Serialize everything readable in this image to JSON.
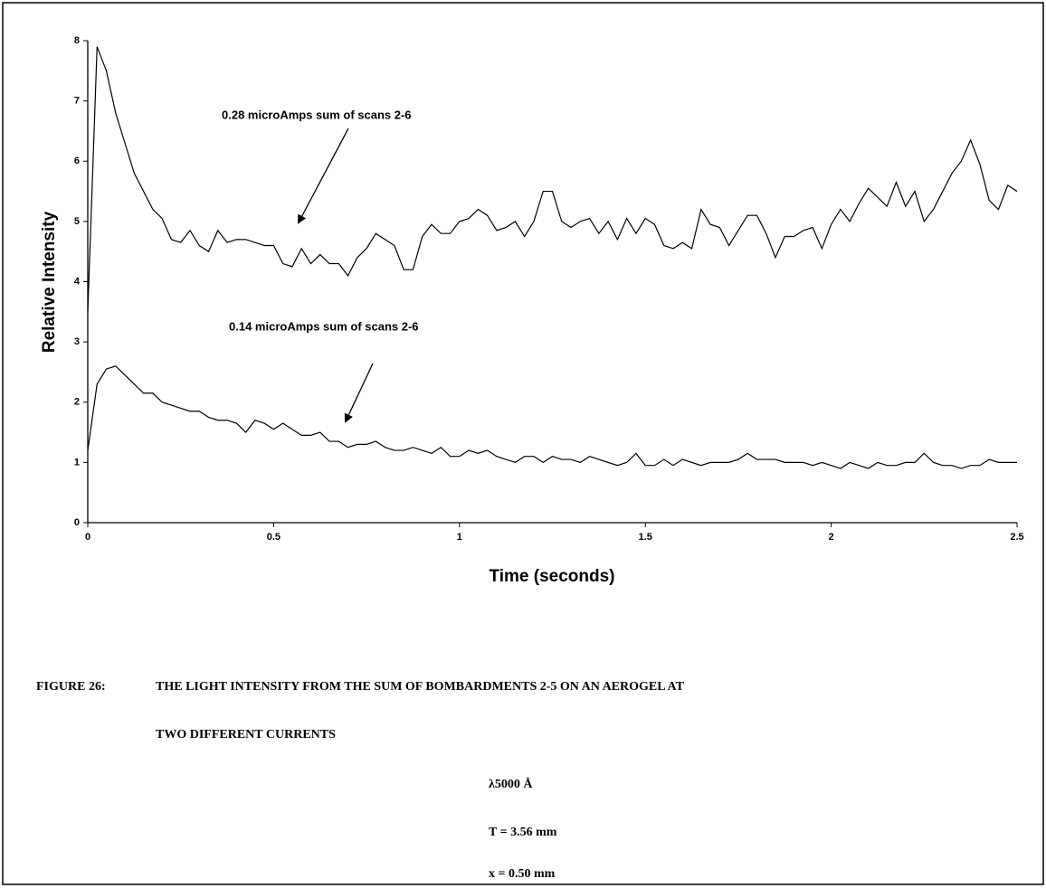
{
  "chart_data": {
    "type": "line",
    "xlabel": "Time (seconds)",
    "ylabel": "Relative Intensity",
    "x": [
      0,
      0.025,
      0.05,
      0.075,
      0.1,
      0.125,
      0.15,
      0.175,
      0.2,
      0.225,
      0.25,
      0.275,
      0.3,
      0.325,
      0.35,
      0.375,
      0.4,
      0.425,
      0.45,
      0.475,
      0.5,
      0.525,
      0.55,
      0.575,
      0.6,
      0.625,
      0.65,
      0.675,
      0.7,
      0.725,
      0.75,
      0.775,
      0.8,
      0.825,
      0.85,
      0.875,
      0.9,
      0.925,
      0.95,
      0.975,
      1,
      1.025,
      1.05,
      1.075,
      1.1,
      1.125,
      1.15,
      1.175,
      1.2,
      1.225,
      1.25,
      1.275,
      1.3,
      1.325,
      1.35,
      1.375,
      1.4,
      1.425,
      1.45,
      1.475,
      1.5,
      1.525,
      1.55,
      1.575,
      1.6,
      1.625,
      1.65,
      1.675,
      1.7,
      1.725,
      1.75,
      1.775,
      1.8,
      1.825,
      1.85,
      1.875,
      1.9,
      1.925,
      1.95,
      1.975,
      2,
      2.025,
      2.05,
      2.075,
      2.1,
      2.125,
      2.15,
      2.175,
      2.2,
      2.225,
      2.25,
      2.275,
      2.3,
      2.325,
      2.35,
      2.375,
      2.4,
      2.425,
      2.45,
      2.475,
      2.5
    ],
    "series": [
      {
        "name": "0.28 microAmps sum of scans 2-6",
        "color": "#000000",
        "values": [
          3.5,
          7.9,
          7.5,
          6.8,
          6.3,
          5.8,
          5.5,
          5.2,
          5.05,
          4.7,
          4.65,
          4.85,
          4.6,
          4.5,
          4.85,
          4.65,
          4.7,
          4.7,
          4.65,
          4.6,
          4.6,
          4.3,
          4.25,
          4.55,
          4.3,
          4.45,
          4.3,
          4.3,
          4.1,
          4.4,
          4.55,
          4.8,
          4.7,
          4.6,
          4.2,
          4.2,
          4.75,
          4.95,
          4.8,
          4.8,
          5.0,
          5.05,
          5.2,
          5.1,
          4.85,
          4.9,
          5.0,
          4.75,
          5.0,
          5.5,
          5.5,
          5.0,
          4.9,
          5.0,
          5.05,
          4.8,
          5.0,
          4.7,
          5.05,
          4.8,
          5.05,
          4.95,
          4.6,
          4.55,
          4.65,
          4.55,
          5.2,
          4.95,
          4.9,
          4.6,
          4.85,
          5.1,
          5.1,
          4.8,
          4.4,
          4.75,
          4.75,
          4.85,
          4.9,
          4.55,
          4.95,
          5.2,
          5.0,
          5.3,
          5.55,
          5.4,
          5.25,
          5.65,
          5.25,
          5.5,
          5.0,
          5.2,
          5.5,
          5.8,
          6.0,
          6.35,
          5.95,
          5.35,
          5.2,
          5.6,
          5.5
        ]
      },
      {
        "name": "0.14 microAmps sum of scans 2-6",
        "color": "#000000",
        "values": [
          1.2,
          2.3,
          2.55,
          2.6,
          2.45,
          2.3,
          2.15,
          2.15,
          2.0,
          1.95,
          1.9,
          1.85,
          1.85,
          1.75,
          1.7,
          1.7,
          1.65,
          1.5,
          1.7,
          1.65,
          1.55,
          1.65,
          1.55,
          1.45,
          1.45,
          1.5,
          1.35,
          1.35,
          1.25,
          1.3,
          1.3,
          1.35,
          1.25,
          1.2,
          1.2,
          1.25,
          1.2,
          1.15,
          1.25,
          1.1,
          1.1,
          1.2,
          1.15,
          1.2,
          1.1,
          1.05,
          1.0,
          1.1,
          1.1,
          1.0,
          1.1,
          1.05,
          1.05,
          1.0,
          1.1,
          1.05,
          1.0,
          0.95,
          1.0,
          1.15,
          0.95,
          0.95,
          1.05,
          0.95,
          1.05,
          1.0,
          0.95,
          1.0,
          1.0,
          1.0,
          1.05,
          1.15,
          1.05,
          1.05,
          1.05,
          1.0,
          1.0,
          1.0,
          0.95,
          1.0,
          0.95,
          0.9,
          1.0,
          0.95,
          0.9,
          1.0,
          0.95,
          0.95,
          1.0,
          1.0,
          1.15,
          1.0,
          0.95,
          0.95,
          0.9,
          0.95,
          0.95,
          1.05,
          1.0,
          1.0,
          1.0
        ]
      }
    ],
    "xlim": [
      0,
      2.5
    ],
    "xticks": [
      0,
      0.5,
      1,
      1.5,
      2,
      2.5
    ],
    "ylim": [
      0,
      8
    ],
    "yticks": [
      0,
      1,
      2,
      3,
      4,
      5,
      6,
      7,
      8
    ],
    "grid": false
  },
  "caption": {
    "label": "FIGURE 26:",
    "lines": [
      "THE LIGHT INTENSITY FROM THE SUM OF BOMBARDMENTS 2-5 ON AN AEROGEL AT",
      "TWO DIFFERENT CURRENTS"
    ],
    "params": [
      "λ5000 Å",
      "T = 3.56 mm",
      "x = 0.50 mm"
    ]
  }
}
